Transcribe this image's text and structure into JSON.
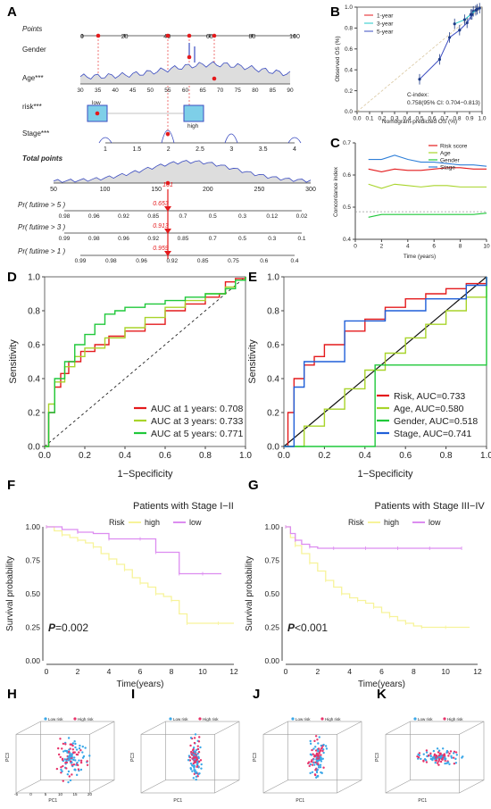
{
  "panel_labels": [
    "A",
    "B",
    "C",
    "D",
    "E",
    "F",
    "G",
    "H",
    "I",
    "J",
    "K"
  ],
  "colors": {
    "red": "#e41a1c",
    "blue": "#3b4cc0",
    "green": "#1fc83a",
    "yellowgreen": "#a8d42a",
    "navy": "#1f3c88",
    "yellow": "#f7f39a",
    "violet": "#dc8cf0"
  },
  "chart_data": [
    {
      "id": "A",
      "type": "nomogram",
      "rows": [
        {
          "label": "Points",
          "italic": true,
          "ticks": [
            0,
            20,
            40,
            60,
            80,
            100
          ]
        },
        {
          "label": "Gender"
        },
        {
          "label": "Age***",
          "ticks": [
            30,
            35,
            40,
            45,
            50,
            55,
            60,
            65,
            70,
            75,
            80,
            85,
            90
          ]
        },
        {
          "label": "risk***",
          "levels": [
            "low",
            "high"
          ]
        },
        {
          "label": "Stage***",
          "ticks": [
            1,
            1.5,
            2,
            2.5,
            3,
            3.5,
            4
          ]
        },
        {
          "label": "Total points",
          "bold": true,
          "italic": true,
          "ticks": [
            50,
            100,
            150,
            200,
            250,
            300
          ]
        },
        {
          "label": "Pr( futime > 5 )",
          "italic": true,
          "ticks": [
            "0.98",
            "0.96",
            "0.92",
            "0.85",
            "0.7",
            "0.5",
            "0.3",
            "0.12",
            "0.02"
          ]
        },
        {
          "label": "Pr( futime > 3 )",
          "italic": true,
          "ticks": [
            "0.99",
            "0.98",
            "0.96",
            "0.92",
            "0.85",
            "0.7",
            "0.5",
            "0.3",
            "0.1"
          ]
        },
        {
          "label": "Pr( futime > 1 )",
          "italic": true,
          "ticks": [
            "0.99",
            "0.98",
            "0.96",
            "0.92",
            "0.85",
            "0.75",
            "0.6",
            "0.4"
          ]
        }
      ],
      "total_points_value": "161",
      "predictions": [
        "0.653",
        "0.913",
        "0.959"
      ]
    },
    {
      "id": "B",
      "type": "line",
      "xlabel": "Nomogram-predicted OS (%)",
      "ylabel": "Observed OS (%)",
      "xlim": [
        0,
        1
      ],
      "ylim": [
        0,
        1
      ],
      "x_ticks": [
        "0.0",
        "0.1",
        "0.2",
        "0.3",
        "0.4",
        "0.5",
        "0.6",
        "0.7",
        "0.8",
        "0.9",
        "1.0"
      ],
      "y_ticks": [
        "0.0",
        "0.2",
        "0.4",
        "0.6",
        "0.8",
        "1.0"
      ],
      "series": [
        {
          "name": "1-year",
          "color": "#e41a1c",
          "x": [
            0.93,
            0.96,
            0.98
          ],
          "y": [
            0.96,
            0.98,
            0.99
          ]
        },
        {
          "name": "3-year",
          "color": "#22c8c8",
          "x": [
            0.78,
            0.86,
            0.91,
            0.95
          ],
          "y": [
            0.84,
            0.88,
            0.93,
            0.97
          ]
        },
        {
          "name": "5-year",
          "color": "#3b4cc0",
          "x": [
            0.5,
            0.66,
            0.74,
            0.82,
            0.88,
            0.92
          ],
          "y": [
            0.31,
            0.5,
            0.71,
            0.78,
            0.85,
            0.93
          ]
        }
      ],
      "annotation_title": "C-index:",
      "annotation": "0.758(95% CI: 0.704−0.813)"
    },
    {
      "id": "C",
      "type": "line",
      "xlabel": "Time (years)",
      "ylabel": "Concordance index",
      "xlim": [
        0,
        10
      ],
      "ylim": [
        0.4,
        0.75
      ],
      "x_ticks": [
        0,
        2,
        4,
        6,
        8,
        10
      ],
      "y_ticks": [
        "0.4",
        "0.5",
        "0.6",
        "0.7"
      ],
      "reference_line": 0.5,
      "series": [
        {
          "name": "Risk score",
          "color": "#e41a1c",
          "x": [
            1,
            2,
            3,
            4,
            5,
            6,
            7,
            8,
            9,
            10
          ],
          "y": [
            0.655,
            0.645,
            0.655,
            0.65,
            0.65,
            0.655,
            0.66,
            0.66,
            0.655,
            0.655
          ]
        },
        {
          "name": "Age",
          "color": "#a8d42a",
          "x": [
            1,
            2,
            3,
            4,
            5,
            6,
            7,
            8,
            9,
            10
          ],
          "y": [
            0.6,
            0.585,
            0.6,
            0.595,
            0.59,
            0.595,
            0.595,
            0.59,
            0.59,
            0.59
          ]
        },
        {
          "name": "Gender",
          "color": "#1fc83a",
          "x": [
            1,
            2,
            3,
            4,
            5,
            6,
            7,
            8,
            9,
            10
          ],
          "y": [
            0.48,
            0.49,
            0.49,
            0.49,
            0.49,
            0.49,
            0.49,
            0.49,
            0.49,
            0.495
          ]
        },
        {
          "name": "Stage",
          "color": "#2f7fd8",
          "x": [
            1,
            2,
            3,
            4,
            5,
            6,
            7,
            8,
            9,
            10
          ],
          "y": [
            0.69,
            0.69,
            0.705,
            0.69,
            0.68,
            0.68,
            0.675,
            0.67,
            0.67,
            0.665
          ]
        }
      ]
    },
    {
      "id": "D",
      "type": "line",
      "xlabel": "1−Specificity",
      "ylabel": "Sensitivity",
      "xlim": [
        0,
        1
      ],
      "ylim": [
        0,
        1
      ],
      "x_ticks": [
        "0.0",
        "0.2",
        "0.4",
        "0.6",
        "0.8",
        "1.0"
      ],
      "y_ticks": [
        "0.0",
        "0.2",
        "0.4",
        "0.6",
        "0.8",
        "1.0"
      ],
      "series": [
        {
          "name": "AUC at 1 years: 0.708",
          "color": "#e41a1c",
          "x": [
            0,
            0.02,
            0.05,
            0.08,
            0.12,
            0.18,
            0.25,
            0.32,
            0.4,
            0.5,
            0.6,
            0.7,
            0.8,
            0.87,
            0.9,
            0.95,
            1
          ],
          "y": [
            0,
            0.2,
            0.35,
            0.43,
            0.5,
            0.56,
            0.6,
            0.65,
            0.68,
            0.72,
            0.8,
            0.84,
            0.88,
            0.9,
            0.97,
            0.99,
            1
          ]
        },
        {
          "name": "AUC at 3 years: 0.733",
          "color": "#a8d42a",
          "x": [
            0,
            0.02,
            0.05,
            0.1,
            0.15,
            0.2,
            0.3,
            0.4,
            0.5,
            0.6,
            0.7,
            0.8,
            0.9,
            0.95,
            1
          ],
          "y": [
            0,
            0.25,
            0.38,
            0.47,
            0.53,
            0.58,
            0.64,
            0.7,
            0.76,
            0.82,
            0.86,
            0.9,
            0.94,
            0.98,
            1
          ]
        },
        {
          "name": "AUC at 5 years: 0.771",
          "color": "#1fc83a",
          "x": [
            0,
            0.02,
            0.05,
            0.1,
            0.15,
            0.2,
            0.25,
            0.3,
            0.35,
            0.4,
            0.5,
            0.6,
            0.7,
            0.8,
            0.9,
            0.95,
            1
          ],
          "y": [
            0,
            0.2,
            0.4,
            0.5,
            0.6,
            0.66,
            0.72,
            0.78,
            0.8,
            0.82,
            0.84,
            0.86,
            0.88,
            0.9,
            0.93,
            0.98,
            1
          ]
        }
      ]
    },
    {
      "id": "E",
      "type": "line",
      "xlabel": "1−Specificity",
      "ylabel": "Sensitivity",
      "xlim": [
        0,
        1
      ],
      "ylim": [
        0,
        1
      ],
      "x_ticks": [
        "0.0",
        "0.2",
        "0.4",
        "0.6",
        "0.8",
        "1.0"
      ],
      "y_ticks": [
        "0.0",
        "0.2",
        "0.4",
        "0.6",
        "0.8",
        "1.0"
      ],
      "series": [
        {
          "name": "Risk, AUC=0.733",
          "color": "#e41a1c",
          "x": [
            0,
            0.02,
            0.05,
            0.1,
            0.15,
            0.2,
            0.3,
            0.4,
            0.5,
            0.6,
            0.7,
            0.8,
            0.9,
            1
          ],
          "y": [
            0,
            0.2,
            0.4,
            0.48,
            0.53,
            0.6,
            0.68,
            0.75,
            0.82,
            0.87,
            0.9,
            0.93,
            0.96,
            1
          ]
        },
        {
          "name": "Age, AUC=0.580",
          "color": "#a8d42a",
          "x": [
            0,
            0.1,
            0.2,
            0.3,
            0.4,
            0.5,
            0.6,
            0.7,
            0.8,
            0.9,
            1
          ],
          "y": [
            0,
            0.12,
            0.22,
            0.34,
            0.45,
            0.55,
            0.64,
            0.72,
            0.8,
            0.88,
            1
          ]
        },
        {
          "name": "Gender, AUC=0.518",
          "color": "#1fc83a",
          "x": [
            0,
            0.45,
            1
          ],
          "y": [
            0,
            0.48,
            1
          ]
        },
        {
          "name": "Stage, AUC=0.741",
          "color": "#1f5fd8",
          "x": [
            0,
            0.05,
            0.1,
            0.3,
            0.5,
            0.7,
            0.9,
            1
          ],
          "y": [
            0,
            0.35,
            0.5,
            0.74,
            0.8,
            0.87,
            0.95,
            1
          ]
        }
      ]
    },
    {
      "id": "F",
      "type": "line",
      "title": "Patients with Stage I−II",
      "xlabel": "Time(years)",
      "ylabel": "Survival probability",
      "xlim": [
        0,
        12
      ],
      "ylim": [
        0,
        1
      ],
      "x_ticks": [
        0,
        2,
        4,
        6,
        8,
        10,
        12
      ],
      "y_ticks": [
        "0.00",
        "0.25",
        "0.50",
        "0.75",
        "1.00"
      ],
      "legend_title": "Risk",
      "pvalue_prefix": "P",
      "pvalue_text": "=0.002",
      "series": [
        {
          "name": "high",
          "color": "#f7f39a",
          "x": [
            0,
            0.5,
            1,
            1.5,
            2,
            2.5,
            3,
            3.5,
            4,
            4.5,
            5,
            5.5,
            6,
            6.5,
            7,
            7.5,
            8,
            8.5,
            9,
            10,
            11,
            12
          ],
          "y": [
            1,
            0.97,
            0.94,
            0.92,
            0.9,
            0.88,
            0.85,
            0.8,
            0.76,
            0.72,
            0.68,
            0.62,
            0.58,
            0.55,
            0.5,
            0.48,
            0.45,
            0.35,
            0.28,
            0.28,
            0.28,
            0.28
          ]
        },
        {
          "name": "low",
          "color": "#dc8cf0",
          "x": [
            0,
            1,
            2,
            3,
            4,
            5,
            6,
            6.5,
            7,
            8,
            8.5,
            9,
            10,
            11.2
          ],
          "y": [
            1,
            0.98,
            0.96,
            0.95,
            0.91,
            0.91,
            0.91,
            0.91,
            0.81,
            0.81,
            0.65,
            0.65,
            0.65,
            0.65
          ]
        }
      ]
    },
    {
      "id": "G",
      "type": "line",
      "title": "Patients with Stage III−IV",
      "xlabel": "Time(years)",
      "ylabel": "Survival probability",
      "xlim": [
        0,
        12
      ],
      "ylim": [
        0,
        1
      ],
      "x_ticks": [
        0,
        2,
        4,
        6,
        8,
        10,
        12
      ],
      "y_ticks": [
        "0.00",
        "0.25",
        "0.50",
        "0.75",
        "1.00"
      ],
      "legend_title": "Risk",
      "pvalue_prefix": "P",
      "pvalue_text": "<0.001",
      "series": [
        {
          "name": "high",
          "color": "#f7f39a",
          "x": [
            0,
            0.3,
            0.6,
            1,
            1.5,
            2,
            2.5,
            3,
            3.5,
            4,
            4.5,
            5,
            5.5,
            6,
            6.5,
            7,
            7.5,
            8,
            8.5,
            9,
            10,
            11.5
          ],
          "y": [
            1,
            0.92,
            0.86,
            0.8,
            0.73,
            0.67,
            0.6,
            0.55,
            0.5,
            0.47,
            0.45,
            0.43,
            0.4,
            0.36,
            0.33,
            0.3,
            0.28,
            0.26,
            0.25,
            0.25,
            0.25,
            0.25
          ]
        },
        {
          "name": "low",
          "color": "#dc8cf0",
          "x": [
            0,
            0.3,
            0.6,
            1,
            1.5,
            2,
            3,
            4,
            5,
            6,
            7,
            8,
            9,
            10,
            11
          ],
          "y": [
            1,
            0.95,
            0.9,
            0.87,
            0.85,
            0.84,
            0.84,
            0.84,
            0.84,
            0.84,
            0.84,
            0.84,
            0.84,
            0.84,
            0.84
          ]
        }
      ]
    },
    {
      "id": "H",
      "type": "scatter",
      "legend": [
        "Low risk",
        "High risk"
      ],
      "xlabel": "PC1",
      "ylabel": "PC3",
      "x_ticks": [
        -5,
        0,
        5,
        10,
        15,
        20
      ]
    },
    {
      "id": "I",
      "type": "scatter",
      "legend": [
        "Low risk",
        "High risk"
      ],
      "xlabel": "PC1",
      "ylabel": "PC3"
    },
    {
      "id": "J",
      "type": "scatter",
      "legend": [
        "Low risk",
        "High risk"
      ],
      "xlabel": "PC1",
      "ylabel": "PC3"
    },
    {
      "id": "K",
      "type": "scatter",
      "legend": [
        "Low risk",
        "High risk"
      ],
      "xlabel": "PC1",
      "ylabel": "PC3"
    }
  ]
}
